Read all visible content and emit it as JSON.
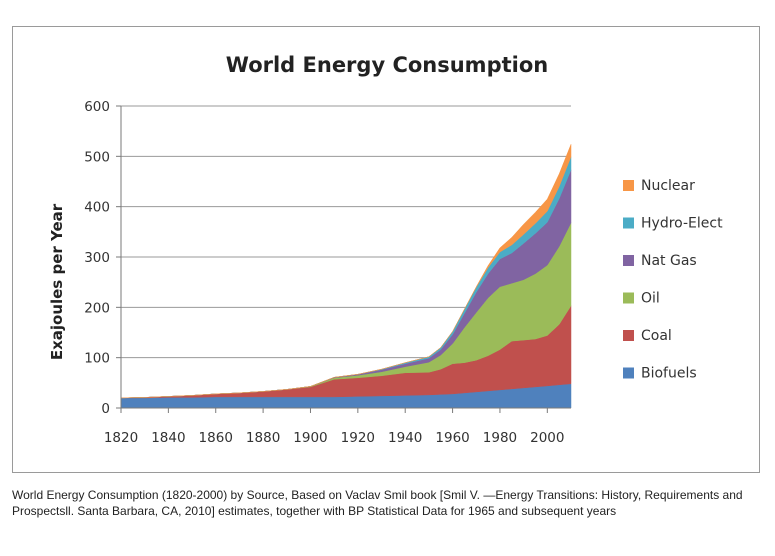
{
  "chart_data": {
    "type": "area",
    "stacked": true,
    "title": "World Energy Consumption",
    "xlabel": "",
    "ylabel": "Exajoules per Year",
    "xlim": [
      1820,
      2010
    ],
    "ylim": [
      0,
      600
    ],
    "x_ticks": [
      1820,
      1840,
      1860,
      1880,
      1900,
      1920,
      1940,
      1960,
      1980,
      2000
    ],
    "y_ticks": [
      0,
      100,
      200,
      300,
      400,
      500,
      600
    ],
    "grid": "horizontal",
    "legend_position": "right",
    "x": [
      1820,
      1830,
      1840,
      1850,
      1860,
      1870,
      1880,
      1890,
      1900,
      1910,
      1920,
      1930,
      1940,
      1950,
      1955,
      1960,
      1965,
      1970,
      1975,
      1980,
      1985,
      1990,
      1995,
      2000,
      2005,
      2010
    ],
    "series": [
      {
        "name": "Biofuels",
        "color": "#4f81bd",
        "values": [
          20,
          20,
          21,
          21,
          22,
          22,
          22,
          22,
          22,
          22,
          23,
          24,
          25,
          26,
          27,
          28,
          30,
          32,
          34,
          36,
          38,
          40,
          42,
          44,
          46,
          48
        ]
      },
      {
        "name": "Coal",
        "color": "#c0504d",
        "values": [
          0,
          1,
          2,
          4,
          6,
          8,
          11,
          15,
          20,
          35,
          37,
          40,
          45,
          45,
          50,
          60,
          60,
          63,
          70,
          80,
          95,
          95,
          95,
          100,
          120,
          155
        ]
      },
      {
        "name": "Oil",
        "color": "#9bbb59",
        "values": [
          0,
          0,
          0,
          0,
          0,
          0,
          0,
          0,
          1,
          3,
          5,
          8,
          12,
          20,
          28,
          40,
          70,
          95,
          115,
          125,
          115,
          120,
          130,
          140,
          155,
          165
        ]
      },
      {
        "name": "Nat Gas",
        "color": "#8064a2",
        "values": [
          0,
          0,
          0,
          0,
          0,
          0,
          0,
          0,
          0,
          1,
          2,
          4,
          6,
          8,
          11,
          18,
          28,
          40,
          48,
          55,
          60,
          72,
          80,
          85,
          95,
          105
        ]
      },
      {
        "name": "Hydro-Elect",
        "color": "#4bacc6",
        "values": [
          0,
          0,
          0,
          0,
          0,
          0,
          0,
          0,
          0,
          0,
          0,
          1,
          2,
          3,
          4,
          6,
          8,
          10,
          12,
          14,
          16,
          18,
          20,
          22,
          24,
          26
        ]
      },
      {
        "name": "Nuclear",
        "color": "#f79646",
        "values": [
          0,
          0,
          0,
          0,
          0,
          0,
          0,
          0,
          0,
          0,
          0,
          0,
          0,
          0,
          0,
          0,
          0,
          1,
          4,
          8,
          15,
          20,
          22,
          24,
          25,
          25
        ]
      }
    ]
  },
  "caption": "World Energy Consumption (1820-2000) by Source, Based on Vaclav Smil book [Smil V. —Energy Transitions: History, Requirements and Prospectsll. Santa Barbara, CA, 2010] estimates, together with BP Statistical Data for 1965 and subsequent years"
}
